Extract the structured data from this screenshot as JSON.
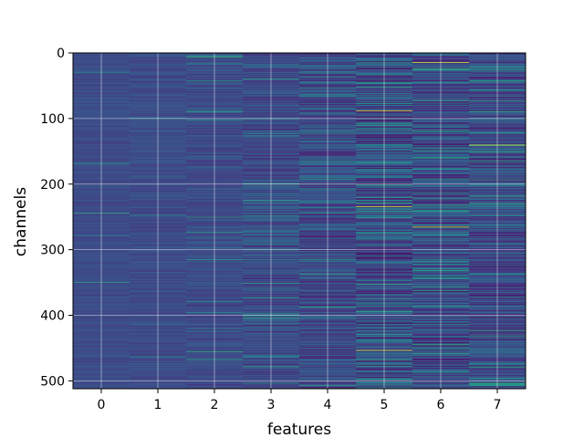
{
  "chart_data": {
    "type": "heatmap",
    "title": "",
    "xlabel": "features",
    "ylabel": "channels",
    "x_ticks": [
      0,
      1,
      2,
      3,
      4,
      5,
      6,
      7
    ],
    "y_ticks": [
      0,
      100,
      200,
      300,
      400,
      500
    ],
    "xlim": [
      -0.5,
      7.5
    ],
    "ylim": [
      512,
      0
    ],
    "rows": 512,
    "columns": 8,
    "colormap": "viridis",
    "grid": true,
    "colorbar": false,
    "bright_stripes": [
      {
        "feature": 5,
        "channel": 88
      },
      {
        "feature": 5,
        "channel": 234
      },
      {
        "feature": 5,
        "channel": 453
      },
      {
        "feature": 6,
        "channel": 14
      },
      {
        "feature": 6,
        "channel": 265
      },
      {
        "feature": 7,
        "channel": 140
      }
    ]
  }
}
